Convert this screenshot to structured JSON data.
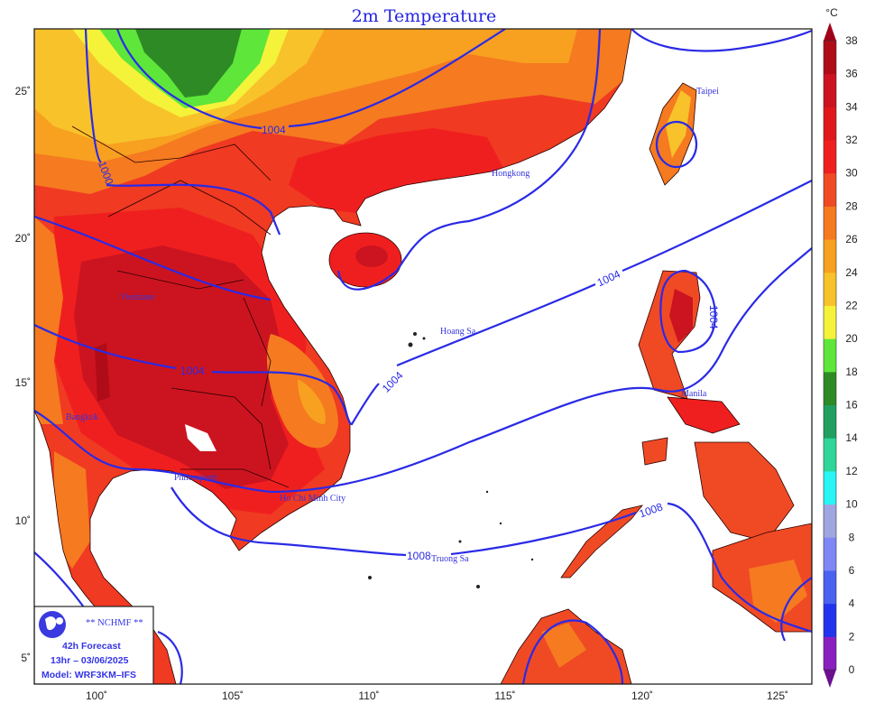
{
  "title": "2m Temperature",
  "colorbar": {
    "unit": "°C",
    "levels": [
      0,
      2,
      4,
      6,
      8,
      10,
      12,
      14,
      16,
      18,
      20,
      22,
      24,
      26,
      28,
      30,
      32,
      34,
      36,
      38
    ],
    "colors": [
      "#8a1fc0",
      "#2233ee",
      "#4a62f0",
      "#7f86f5",
      "#a0a6e0",
      "#2af5f5",
      "#2ed69a",
      "#1fa060",
      "#2e8a25",
      "#5ee63a",
      "#f5f23a",
      "#f8c22a",
      "#f8a020",
      "#f57a20",
      "#f04a25",
      "#f01f1f",
      "#e0181c",
      "#cc1420",
      "#b00c18"
    ],
    "under_color": "#6a1090",
    "over_color": "#a0001a"
  },
  "axes": {
    "lon_ticks": [
      "100˚",
      "105˚",
      "110˚",
      "115˚",
      "120˚",
      "125˚"
    ],
    "lat_ticks": [
      "25˚",
      "20˚",
      "15˚",
      "10˚",
      "5˚"
    ]
  },
  "isobar_labels": [
    "1004",
    "1000",
    "1004",
    "1004",
    "1004",
    "1004",
    "1008",
    "1008"
  ],
  "cities": [
    "Vientiane",
    "Bangkok",
    "Phnompenh",
    "Ho Chi Minh City",
    "Hongkong",
    "Taipei",
    "Hoang Sa",
    "Manila",
    "Truong Sa"
  ],
  "info_box": {
    "org": "** NCHMF **",
    "forecast": "42h Forecast",
    "valid": "13hr – 03/06/2025",
    "model": "Model: WRF3KM–IFS",
    "logo_text": "NCHMF"
  },
  "colors": {
    "isobar": "#2a2ae6",
    "label": "#3434dd"
  }
}
